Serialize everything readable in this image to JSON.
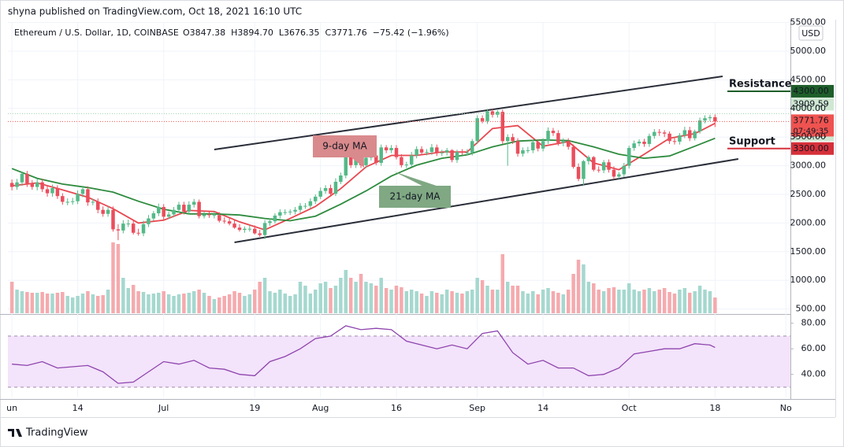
{
  "chart_data": {
    "type": "candlestick",
    "header": "shyna published on TradingView.com, Oct 18, 2021 16:10 UTC",
    "symbol": "Ethereum / U.S. Dollar, 1D, COINBASE",
    "legend_items": [
      "O3847.38",
      "H3894.70",
      "L3676.35",
      "C3771.76",
      "−75.42 (−1.96%)"
    ],
    "currency": "USD",
    "brand": "TradingView",
    "up_color": "#53b987",
    "down_color": "#eb4d5c",
    "volume_up_color": "#a5d8cf",
    "volume_down_color": "#f5aaae",
    "open": [
      2700,
      2630,
      2710,
      2860,
      2690,
      2630,
      2710,
      2590,
      2520,
      2610,
      2470,
      2370,
      2370,
      2380,
      2510,
      2590,
      2360,
      2370,
      2230,
      2160,
      2230,
      1890,
      1870,
      1990,
      1990,
      1830,
      1820,
      1980,
      2080,
      2170,
      2280,
      2110,
      2150,
      2230,
      2320,
      2200,
      2320,
      2370,
      2120,
      2150,
      2140,
      2140,
      2040,
      2030,
      1990,
      1920,
      1880,
      1900,
      1900,
      1820,
      1790,
      2000,
      2030,
      2130,
      2190,
      2190,
      2200,
      2230,
      2300,
      2300,
      2380,
      2460,
      2560,
      2610,
      2510,
      2720,
      2830,
      3160,
      3010,
      3160,
      3010,
      3140,
      3180,
      3050,
      3320,
      3270,
      3310,
      3150,
      3010,
      3020,
      3180,
      3290,
      3230,
      3240,
      3320,
      3220,
      3230,
      3270,
      3100,
      3240,
      3230,
      3230,
      3430,
      3830,
      3780,
      3950,
      3890,
      3940,
      3430,
      3500,
      3430,
      3210,
      3270,
      3270,
      3410,
      3300,
      3430,
      3610,
      3570,
      3400,
      3430,
      3330,
      2980,
      2770,
      3080,
      3150,
      2930,
      2920,
      3060,
      2930,
      2810,
      2850,
      3000,
      3310,
      3390,
      3420,
      3380,
      3520,
      3590,
      3580,
      3560,
      3430,
      3420,
      3530,
      3620,
      3480,
      3600,
      3790,
      3830,
      3847.38
    ],
    "high": [
      2760,
      2770,
      2900,
      2910,
      2750,
      2770,
      2770,
      2650,
      2670,
      2660,
      2520,
      2430,
      2440,
      2570,
      2650,
      2640,
      2420,
      2430,
      2290,
      2290,
      2290,
      1980,
      2050,
      2060,
      2050,
      1900,
      2040,
      2140,
      2210,
      2340,
      2330,
      2200,
      2280,
      2370,
      2370,
      2380,
      2420,
      2410,
      2200,
      2210,
      2200,
      2190,
      2100,
      2090,
      2050,
      1980,
      1940,
      1960,
      1960,
      1880,
      2050,
      2080,
      2170,
      2240,
      2240,
      2240,
      2280,
      2350,
      2350,
      2430,
      2500,
      2620,
      2660,
      2670,
      2780,
      2880,
      3200,
      3190,
      3210,
      3200,
      3190,
      3240,
      3230,
      3370,
      3360,
      3360,
      3360,
      3200,
      3070,
      3240,
      3340,
      3340,
      3290,
      3380,
      3370,
      3280,
      3310,
      3290,
      3280,
      3290,
      3290,
      3470,
      3880,
      3880,
      3990,
      3990,
      3970,
      3980,
      3550,
      3560,
      3480,
      3320,
      3330,
      3450,
      3460,
      3480,
      3670,
      3660,
      3620,
      3480,
      3480,
      3370,
      3040,
      3100,
      3180,
      3170,
      2990,
      3100,
      3110,
      2990,
      2890,
      3050,
      3350,
      3440,
      3460,
      3470,
      3560,
      3640,
      3640,
      3620,
      3600,
      3480,
      3570,
      3680,
      3680,
      3630,
      3840,
      3880,
      3890,
      3894.7
    ],
    "low": [
      2570,
      2580,
      2650,
      2630,
      2580,
      2570,
      2540,
      2460,
      2460,
      2420,
      2320,
      2310,
      2320,
      2330,
      2450,
      2300,
      2310,
      2170,
      2110,
      2110,
      1850,
      1700,
      1820,
      1930,
      1800,
      1780,
      1770,
      1930,
      2040,
      2120,
      2060,
      2070,
      2100,
      2180,
      2150,
      2150,
      2270,
      2080,
      2080,
      2090,
      2080,
      2010,
      1990,
      1960,
      1900,
      1850,
      1830,
      1850,
      1800,
      1760,
      1720,
      1950,
      1990,
      2080,
      2140,
      2140,
      2150,
      2180,
      2250,
      2250,
      2330,
      2420,
      2510,
      2460,
      2470,
      2680,
      2780,
      2960,
      2960,
      2960,
      2960,
      3090,
      3010,
      3000,
      3220,
      3220,
      3110,
      2970,
      2960,
      2980,
      3130,
      3180,
      3180,
      3190,
      3170,
      3170,
      3180,
      3060,
      3050,
      3190,
      3180,
      3180,
      3380,
      3740,
      3730,
      3840,
      3840,
      3380,
      3000,
      3380,
      3160,
      3160,
      3220,
      3220,
      3250,
      3250,
      3380,
      3520,
      3350,
      3340,
      3280,
      2950,
      2730,
      2650,
      3020,
      2900,
      2880,
      2870,
      2880,
      2760,
      2770,
      2800,
      2950,
      3260,
      3340,
      3330,
      3330,
      3470,
      3520,
      3500,
      3380,
      3370,
      3370,
      3480,
      3430,
      3440,
      3560,
      3740,
      3780,
      3676.35
    ],
    "close": [
      2630,
      2710,
      2860,
      2690,
      2630,
      2710,
      2590,
      2520,
      2610,
      2470,
      2370,
      2370,
      2380,
      2510,
      2590,
      2360,
      2370,
      2230,
      2160,
      2230,
      1890,
      1870,
      1990,
      1990,
      1830,
      1820,
      1980,
      2080,
      2170,
      2280,
      2110,
      2150,
      2230,
      2320,
      2200,
      2320,
      2370,
      2120,
      2150,
      2140,
      2140,
      2040,
      2030,
      1990,
      1920,
      1880,
      1900,
      1900,
      1820,
      1790,
      2000,
      2030,
      2130,
      2190,
      2190,
      2200,
      2230,
      2300,
      2300,
      2380,
      2460,
      2560,
      2610,
      2510,
      2720,
      2830,
      3160,
      3010,
      3160,
      3010,
      3140,
      3180,
      3050,
      3320,
      3270,
      3310,
      3150,
      3010,
      3020,
      3180,
      3290,
      3230,
      3240,
      3320,
      3220,
      3230,
      3270,
      3100,
      3240,
      3230,
      3230,
      3430,
      3830,
      3780,
      3950,
      3890,
      3940,
      3430,
      3500,
      3430,
      3210,
      3270,
      3270,
      3410,
      3300,
      3430,
      3610,
      3570,
      3400,
      3430,
      3330,
      2980,
      2770,
      3080,
      3150,
      2930,
      2920,
      3060,
      2930,
      2810,
      2850,
      3000,
      3310,
      3390,
      3420,
      3380,
      3520,
      3590,
      3580,
      3560,
      3430,
      3420,
      3530,
      3620,
      3480,
      3600,
      3790,
      3830,
      3847.38,
      3771.76
    ],
    "volume": [
      40,
      30,
      28,
      27,
      26,
      26,
      27,
      25,
      25,
      26,
      27,
      22,
      20,
      22,
      25,
      28,
      24,
      22,
      23,
      30,
      90,
      88,
      45,
      32,
      36,
      28,
      27,
      24,
      25,
      26,
      28,
      24,
      22,
      24,
      25,
      26,
      28,
      30,
      26,
      22,
      18,
      20,
      22,
      24,
      28,
      26,
      22,
      24,
      30,
      40,
      45,
      28,
      26,
      30,
      25,
      22,
      24,
      40,
      35,
      25,
      30,
      38,
      40,
      32,
      35,
      45,
      55,
      45,
      40,
      50,
      40,
      38,
      35,
      45,
      32,
      30,
      35,
      33,
      28,
      30,
      28,
      25,
      22,
      28,
      26,
      24,
      30,
      28,
      26,
      25,
      28,
      30,
      45,
      42,
      35,
      30,
      30,
      75,
      40,
      35,
      35,
      28,
      25,
      28,
      24,
      30,
      32,
      28,
      26,
      24,
      30,
      50,
      68,
      62,
      40,
      38,
      30,
      28,
      32,
      33,
      30,
      30,
      38,
      30,
      28,
      30,
      32,
      28,
      30,
      32,
      27,
      25,
      30,
      32,
      26,
      28,
      35,
      30,
      28,
      20
    ],
    "volume_ylim": [
      0,
      100
    ],
    "xlim": [
      -0.8,
      153.9
    ],
    "xticks": [
      {
        "value": 0,
        "label": "un"
      },
      {
        "value": 13,
        "label": "14"
      },
      {
        "value": 30,
        "label": "Jul"
      },
      {
        "value": 48,
        "label": "19"
      },
      {
        "value": 61,
        "label": "Aug"
      },
      {
        "value": 76,
        "label": "16"
      },
      {
        "value": 92,
        "label": "Sep"
      },
      {
        "value": 105,
        "label": "14"
      },
      {
        "value": 122,
        "label": "Oct"
      },
      {
        "value": 139,
        "label": "18"
      },
      {
        "value": 153,
        "label": "No"
      }
    ],
    "ylim": [
      426,
      5508
    ],
    "yticks": [
      {
        "value": 500,
        "label": "500.00"
      },
      {
        "value": 1000,
        "label": "1000.00"
      },
      {
        "value": 1500,
        "label": "1500.00"
      },
      {
        "value": 2000,
        "label": "2000.00"
      },
      {
        "value": 2500,
        "label": "2500.00"
      },
      {
        "value": 3000,
        "label": "3000.00"
      },
      {
        "value": 3500,
        "label": "3500.00"
      },
      {
        "value": 4000,
        "label": "4000.00"
      },
      {
        "value": 4500,
        "label": "4500.00"
      },
      {
        "value": 5000,
        "label": "5000.00"
      },
      {
        "value": 5500,
        "label": "5500.00"
      }
    ],
    "grid": true,
    "moving_averages": [
      {
        "name": "9-day MA",
        "color": "#e8474f",
        "box_color": "#d98a8c",
        "x": [
          0,
          5,
          10,
          15,
          20,
          25,
          30,
          35,
          40,
          45,
          50,
          55,
          60,
          65,
          70,
          75,
          80,
          85,
          90,
          95,
          100,
          105,
          110,
          115,
          120,
          125,
          130,
          135,
          139
        ],
        "values": [
          2650,
          2700,
          2580,
          2450,
          2250,
          2000,
          2050,
          2220,
          2200,
          2020,
          1880,
          2080,
          2290,
          2600,
          2980,
          3180,
          3180,
          3240,
          3240,
          3650,
          3700,
          3340,
          3420,
          3050,
          2930,
          3200,
          3480,
          3560,
          3740
        ]
      },
      {
        "name": "21-day MA",
        "color": "#2e8b3e",
        "box_color": "#7fa883",
        "x": [
          0,
          5,
          10,
          15,
          20,
          25,
          30,
          35,
          40,
          45,
          50,
          55,
          60,
          65,
          70,
          75,
          80,
          85,
          90,
          95,
          100,
          105,
          110,
          115,
          120,
          125,
          130,
          135,
          139
        ],
        "values": [
          2950,
          2780,
          2680,
          2620,
          2540,
          2380,
          2240,
          2160,
          2160,
          2140,
          2080,
          2040,
          2120,
          2330,
          2560,
          2820,
          3010,
          3130,
          3190,
          3330,
          3430,
          3450,
          3440,
          3330,
          3200,
          3130,
          3170,
          3340,
          3480
        ]
      }
    ],
    "trendlines": [
      {
        "x": [
          40,
          140.5
        ],
        "y": [
          3283,
          4560
        ]
      },
      {
        "x": [
          44,
          143.6
        ],
        "y": [
          1662,
          3118
        ]
      }
    ],
    "levels": [
      {
        "name": "Resistance",
        "value": 4300,
        "value_label": "4300.00",
        "text_color": "#e0323a",
        "color": "#1e5e2a"
      },
      {
        "name": "Support",
        "value": 3300,
        "value_label": "3300.00",
        "text_color": "#1e7d32",
        "color": "#d6303a"
      }
    ],
    "price_labels": [
      {
        "value": 3909.59,
        "value_label": "3909.59",
        "color": "#cfe8d2"
      },
      {
        "value": 3702.67,
        "value_label": "3702.67",
        "color": "#cfe8d2"
      }
    ],
    "last_price": {
      "value": 3771.76,
      "value_label": "3771.76",
      "countdown": "07:49:35",
      "color": "#ef5350"
    },
    "rsi": {
      "color": "#8e44ad",
      "x": [
        0,
        3,
        6,
        9,
        12,
        15,
        18,
        21,
        24,
        27,
        30,
        33,
        36,
        39,
        42,
        45,
        48,
        51,
        54,
        57,
        60,
        63,
        66,
        69,
        72,
        75,
        78,
        81,
        84,
        87,
        90,
        93,
        96,
        99,
        102,
        105,
        108,
        111,
        114,
        117,
        120,
        123,
        126,
        129,
        132,
        135,
        138,
        139
      ],
      "values": [
        48,
        47,
        50,
        45,
        46,
        47,
        42,
        33,
        34,
        42,
        50,
        48,
        51,
        45,
        44,
        40,
        39,
        50,
        54,
        60,
        68,
        70,
        78,
        75,
        76,
        75,
        66,
        63,
        60,
        63,
        60,
        72,
        74,
        57,
        48,
        51,
        45,
        45,
        39,
        40,
        45,
        56,
        58,
        60,
        60,
        64,
        63,
        61
      ],
      "ylim": [
        22,
        86.6
      ],
      "yticks": [
        {
          "value": 40,
          "label": "40.00"
        },
        {
          "value": 60,
          "label": "60.00"
        },
        {
          "value": 80,
          "label": "80.00"
        }
      ],
      "band": [
        30,
        70
      ]
    }
  }
}
